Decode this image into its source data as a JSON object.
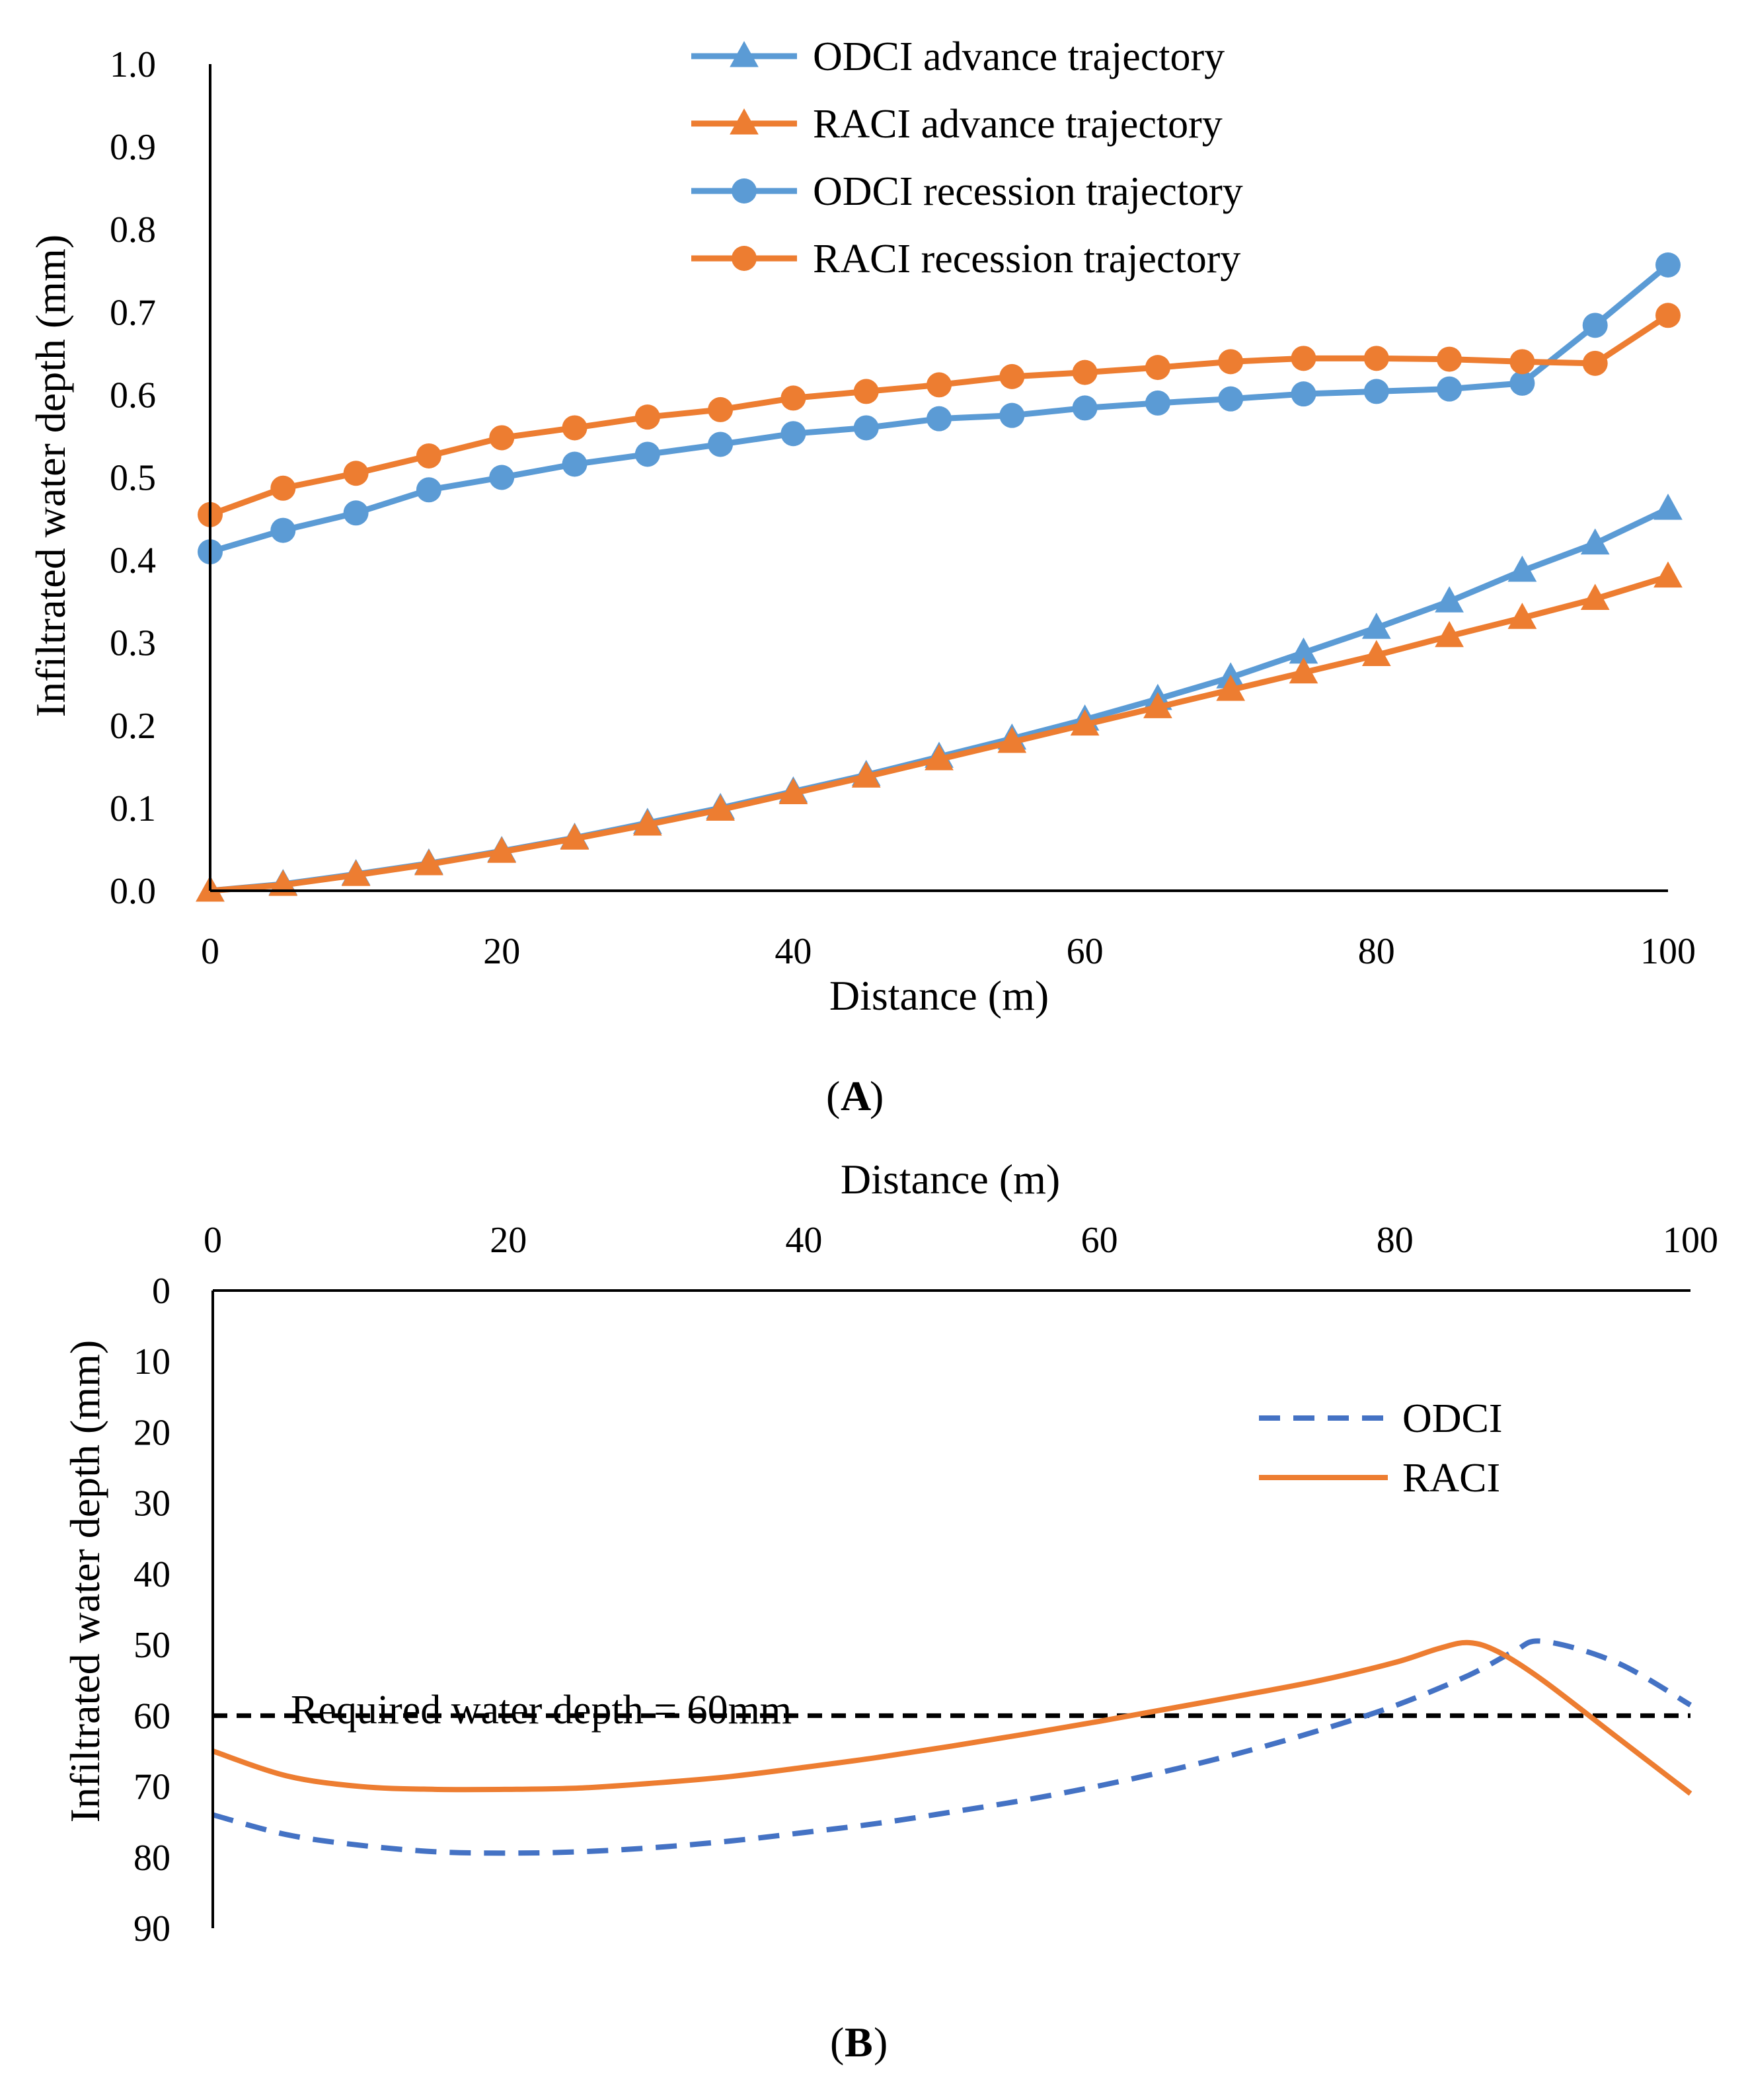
{
  "colors": {
    "blue": "#5B9BD5",
    "orange": "#ED7D31",
    "dash_blue": "#4472C4",
    "black": "#000000"
  },
  "chart_data": [
    {
      "type": "line",
      "panel_label": "A",
      "xlabel": "Distance (m)",
      "ylabel": "Infiltrated water depth (mm)",
      "xlim": [
        0,
        100
      ],
      "ylim": [
        0,
        1.0
      ],
      "x_ticks": [
        "0",
        "20",
        "40",
        "60",
        "80",
        "100"
      ],
      "y_ticks": [
        "0.0",
        "0.1",
        "0.2",
        "0.3",
        "0.4",
        "0.5",
        "0.6",
        "0.7",
        "0.8",
        "0.9",
        "1.0"
      ],
      "legend_position": "top-center",
      "x": [
        0,
        5,
        10,
        15,
        20,
        25,
        30,
        35,
        40,
        45,
        50,
        55,
        60,
        65,
        70,
        75,
        80,
        85,
        90,
        95,
        100
      ],
      "series": [
        {
          "name": "ODCI advance trajectory",
          "color": "#5B9BD5",
          "marker": "triangle",
          "values": [
            0.0,
            0.008,
            0.02,
            0.033,
            0.048,
            0.064,
            0.082,
            0.1,
            0.12,
            0.14,
            0.162,
            0.184,
            0.207,
            0.232,
            0.258,
            0.288,
            0.318,
            0.35,
            0.387,
            0.42,
            0.462
          ]
        },
        {
          "name": "RACI advance trajectory",
          "color": "#ED7D31",
          "marker": "triangle",
          "values": [
            0.0,
            0.007,
            0.019,
            0.032,
            0.047,
            0.063,
            0.08,
            0.098,
            0.118,
            0.138,
            0.159,
            0.18,
            0.201,
            0.222,
            0.243,
            0.264,
            0.285,
            0.308,
            0.33,
            0.353,
            0.38
          ]
        },
        {
          "name": "ODCI recession trajectory",
          "color": "#5B9BD5",
          "marker": "circle",
          "values": [
            0.41,
            0.436,
            0.457,
            0.485,
            0.5,
            0.516,
            0.528,
            0.54,
            0.553,
            0.56,
            0.571,
            0.575,
            0.584,
            0.59,
            0.595,
            0.601,
            0.604,
            0.607,
            0.614,
            0.684,
            0.757
          ]
        },
        {
          "name": "RACI recession trajectory",
          "color": "#ED7D31",
          "marker": "circle",
          "values": [
            0.455,
            0.487,
            0.505,
            0.526,
            0.548,
            0.56,
            0.573,
            0.582,
            0.596,
            0.604,
            0.612,
            0.622,
            0.627,
            0.633,
            0.64,
            0.644,
            0.644,
            0.643,
            0.64,
            0.638,
            0.696
          ]
        }
      ]
    },
    {
      "type": "line",
      "panel_label": "B",
      "xlabel": "Distance (m)",
      "ylabel": "Infiltrated water depth (mm)",
      "xlim": [
        0,
        100
      ],
      "ylim": [
        0,
        90
      ],
      "y_inverted": true,
      "x_axis_position": "top",
      "x_ticks": [
        "0",
        "20",
        "40",
        "60",
        "80",
        "100"
      ],
      "y_ticks": [
        "0",
        "10",
        "20",
        "30",
        "40",
        "50",
        "60",
        "70",
        "80",
        "90"
      ],
      "legend_position": "top-right",
      "annotation": "Required water depth = 60mm",
      "reference_line": 60,
      "series": [
        {
          "name": "ODCI",
          "color": "#4472C4",
          "style": "dashed",
          "x": [
            0,
            5,
            10,
            15,
            20,
            25,
            30,
            35,
            40,
            45,
            50,
            55,
            60,
            65,
            70,
            75,
            80,
            85,
            88,
            90,
            95,
            100
          ],
          "values": [
            74,
            76.8,
            78.3,
            79.2,
            79.4,
            79.2,
            78.6,
            77.7,
            76.5,
            75.2,
            73.6,
            71.9,
            69.9,
            67.6,
            65,
            62,
            58.6,
            54.3,
            51,
            49.5,
            52.5,
            58.5
          ]
        },
        {
          "name": "RACI",
          "color": "#ED7D31",
          "style": "solid",
          "x": [
            0,
            5,
            10,
            15,
            20,
            25,
            30,
            35,
            40,
            45,
            50,
            55,
            60,
            65,
            70,
            75,
            80,
            83,
            85,
            87,
            90,
            95,
            100
          ],
          "values": [
            65,
            68.5,
            70,
            70.4,
            70.4,
            70.2,
            69.5,
            68.6,
            67.3,
            65.9,
            64.3,
            62.6,
            60.8,
            58.9,
            57,
            55,
            52.5,
            50.5,
            49.7,
            51,
            55,
            63,
            71
          ]
        }
      ]
    }
  ]
}
